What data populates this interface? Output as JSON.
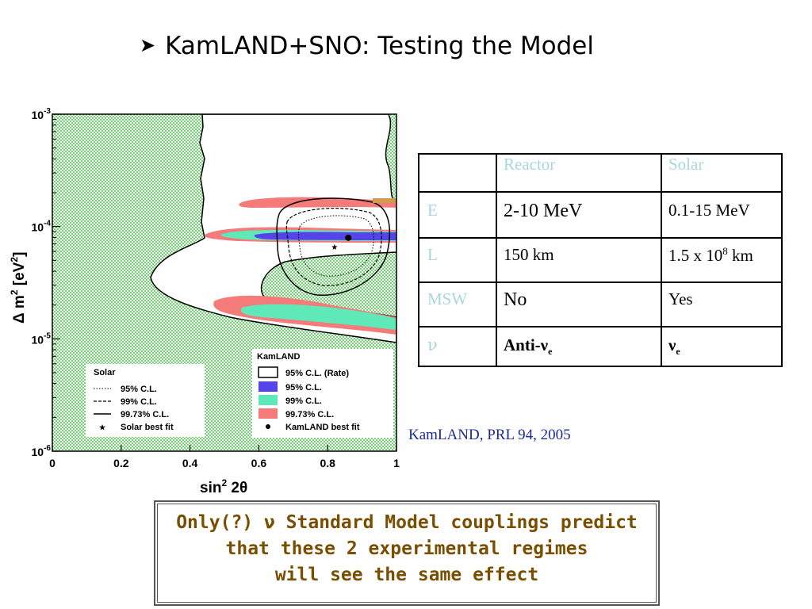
{
  "slide": {
    "title": "KamLAND+SNO: Testing the Model",
    "bullet_icon": "arrow-bullet-icon",
    "citation": "KamLAND, PRL 94, 2005",
    "note_lines": [
      "Only(?) ν Standard Model couplings predict",
      "that these 2 experimental regimes",
      "will see the same effect"
    ]
  },
  "table": {
    "headers": [
      "",
      "Reactor",
      "Solar"
    ],
    "rows": [
      {
        "label": "E",
        "reactor": "2-10 MeV",
        "solar": "0.1-15 MeV"
      },
      {
        "label": "L",
        "reactor": "150 km",
        "solar_base": "1.5 x 10",
        "solar_exp": "8",
        "solar_unit": " km"
      },
      {
        "label": "MSW",
        "reactor": "No",
        "solar": "Yes"
      },
      {
        "label": "ν",
        "reactor_base": "Anti-ν",
        "reactor_sub": "e",
        "solar_base": "ν",
        "solar_sub": "e"
      }
    ]
  },
  "chart_data": {
    "type": "contour",
    "xlabel_base": "sin",
    "xlabel_sup": "2",
    "xlabel_tail": " 2θ",
    "ylabel_base": "Δ m",
    "ylabel_sup": "2",
    "ylabel_tail": " [eV",
    "ylabel_sup2": "2",
    "ylabel_end": "]",
    "x_ticks": [
      "0",
      "0.2",
      "0.4",
      "0.6",
      "0.8",
      "1"
    ],
    "y_ticks": [
      {
        "base": "10",
        "exp": "-3"
      },
      {
        "base": "10",
        "exp": "-4"
      },
      {
        "base": "10",
        "exp": "-5"
      },
      {
        "base": "10",
        "exp": "-6"
      }
    ],
    "xlim": [
      0,
      1
    ],
    "ylim_log10": [
      -6,
      -3
    ],
    "kamland_best_fit": {
      "x": 0.86,
      "y_log10": -4.1
    },
    "solar_best_fit": {
      "x": 0.82,
      "y_log10": -4.18
    },
    "legend_solar": {
      "title": "Solar",
      "entries": [
        "95% C.L.",
        "99% C.L.",
        "99.73% C.L.",
        "Solar best fit"
      ]
    },
    "legend_kamland": {
      "title": "KamLAND",
      "entries": [
        "95% C.L. (Rate)",
        "95% C.L.",
        "99% C.L.",
        "99.73% C.L.",
        "KamLAND best fit"
      ]
    },
    "colors": {
      "background": "#6fd36f",
      "cl95": "#5545e8",
      "cl99": "#5fe8b8",
      "cl9973": "#f57a7a"
    }
  }
}
